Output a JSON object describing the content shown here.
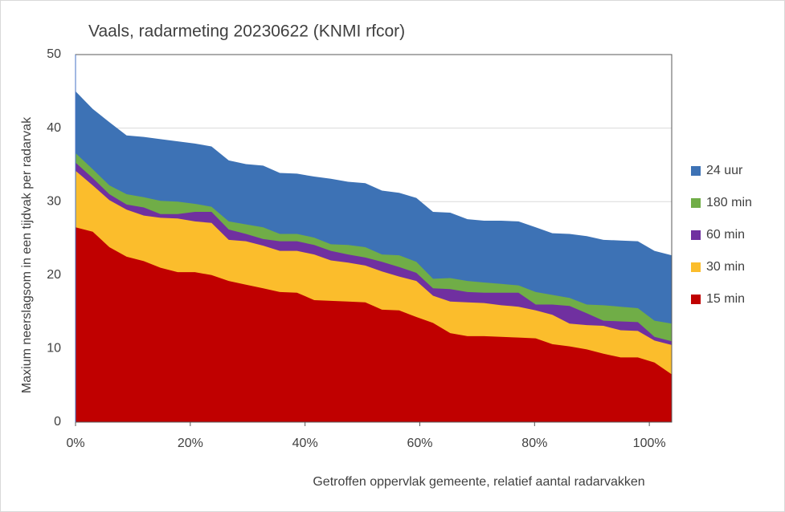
{
  "chart_data": {
    "type": "area",
    "title": "Vaals, radarmeting 20230622 (KNMI rfcor)",
    "x_label": "Getroffen oppervlak gemeente, relatief aantal radarvakken",
    "y_label": "Maxium neerslagsom in een tijdvak per radarvak",
    "x": [
      0,
      3,
      5.9,
      8.9,
      11.9,
      14.8,
      17.8,
      20.8,
      23.7,
      26.7,
      29.7,
      32.7,
      35.6,
      38.6,
      41.6,
      44.5,
      47.5,
      50.5,
      53.4,
      56.4,
      59.4,
      62.3,
      65.3,
      68.3,
      71.2,
      74.2,
      77.2,
      80.2,
      83.1,
      86.1,
      89.1,
      92,
      95,
      98,
      100.9,
      103.9
    ],
    "series": [
      {
        "name": "24 uur",
        "color": "#3d72b5",
        "values": [
          45.0,
          42.6,
          40.8,
          39.0,
          38.8,
          38.5,
          38.2,
          37.9,
          37.5,
          35.6,
          35.1,
          34.9,
          33.9,
          33.8,
          33.4,
          33.1,
          32.7,
          32.5,
          31.5,
          31.2,
          30.5,
          28.6,
          28.5,
          27.6,
          27.4,
          27.4,
          27.3,
          26.5,
          25.7,
          25.6,
          25.3,
          24.8,
          24.7,
          24.6,
          23.3,
          22.7
        ]
      },
      {
        "name": "180 min",
        "color": "#70ad47",
        "values": [
          36.6,
          34.4,
          32.2,
          31.0,
          30.6,
          30.1,
          30.0,
          29.7,
          29.3,
          27.3,
          26.9,
          26.5,
          25.6,
          25.6,
          25.1,
          24.2,
          24.1,
          23.8,
          22.8,
          22.7,
          21.8,
          19.5,
          19.6,
          19.2,
          19.0,
          18.8,
          18.6,
          17.7,
          17.3,
          16.9,
          16.0,
          15.9,
          15.7,
          15.5,
          13.8,
          13.4
        ]
      },
      {
        "name": "60 min",
        "color": "#7030a0",
        "values": [
          35.3,
          33.2,
          31.0,
          29.6,
          29.2,
          28.3,
          28.3,
          28.6,
          28.6,
          26.2,
          25.6,
          24.9,
          24.6,
          24.6,
          24.1,
          23.3,
          22.8,
          22.4,
          21.8,
          21.1,
          20.3,
          18.2,
          18.1,
          17.7,
          17.6,
          17.6,
          17.6,
          16.0,
          16.0,
          15.8,
          14.8,
          13.8,
          13.7,
          13.6,
          11.6,
          11.0
        ]
      },
      {
        "name": "30 min",
        "color": "#fbbd2c",
        "values": [
          34.2,
          32.2,
          30.2,
          28.9,
          28.1,
          27.8,
          27.7,
          27.3,
          27.1,
          24.8,
          24.6,
          24.0,
          23.3,
          23.3,
          22.8,
          22.0,
          21.7,
          21.3,
          20.5,
          19.8,
          19.2,
          17.2,
          16.4,
          16.3,
          16.2,
          15.9,
          15.7,
          15.2,
          14.6,
          13.4,
          13.2,
          13.1,
          12.5,
          12.4,
          11.1,
          10.5
        ]
      },
      {
        "name": "15 min",
        "color": "#c00000",
        "values": [
          26.5,
          25.9,
          23.8,
          22.5,
          21.9,
          21.0,
          20.4,
          20.4,
          20.0,
          19.2,
          18.7,
          18.2,
          17.7,
          17.6,
          16.6,
          16.5,
          16.4,
          16.3,
          15.3,
          15.2,
          14.3,
          13.5,
          12.1,
          11.7,
          11.7,
          11.6,
          11.5,
          11.4,
          10.6,
          10.3,
          9.9,
          9.3,
          8.8,
          8.8,
          8.1,
          6.5
        ]
      }
    ],
    "xlim": [
      0,
      103.9
    ],
    "ylim": [
      0,
      50
    ],
    "xticks": [
      {
        "value": 0,
        "label": "0%"
      },
      {
        "value": 20,
        "label": "20%"
      },
      {
        "value": 40,
        "label": "40%"
      },
      {
        "value": 60,
        "label": "60%"
      },
      {
        "value": 80,
        "label": "80%"
      },
      {
        "value": 100,
        "label": "100%"
      }
    ],
    "yticks": [
      0,
      10,
      20,
      30,
      40,
      50
    ],
    "grid": true,
    "legend": "right"
  }
}
